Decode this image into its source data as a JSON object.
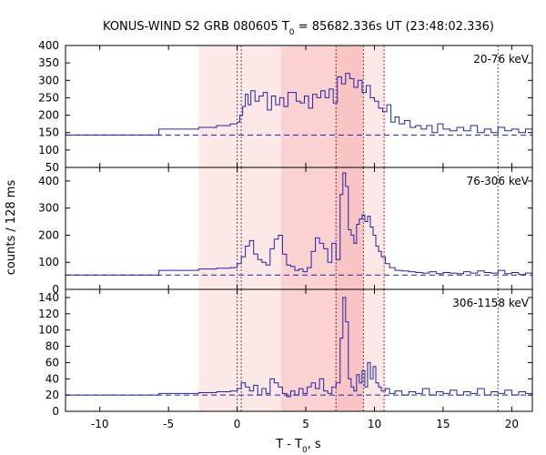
{
  "title_main": "KONUS-WIND S2 GRB 080605 T",
  "title_sub": "0",
  "title_rest": " = 85682.336s UT (23:48:02.336)",
  "chart_data": {
    "type": "step-line",
    "title": "KONUS-WIND S2 GRB 080605 T0 = 85682.336s UT (23:48:02.336)",
    "xlabel": "T - T0, s",
    "ylabel": "counts / 128 ms",
    "xlim": [
      -12.5,
      21.5
    ],
    "xticks": [
      -10,
      -5,
      0,
      5,
      10,
      15,
      20
    ],
    "xtick_labels": [
      "-10",
      "-5",
      "0",
      "5",
      "10",
      "15",
      "20"
    ],
    "shaded_regions": [
      {
        "x0": -2.8,
        "x1": 10.8,
        "color": "#fde8e8"
      },
      {
        "x0": 3.2,
        "x1": 7.2,
        "color": "#fbd2d2"
      },
      {
        "x0": 7.2,
        "x1": 9.2,
        "color": "#f9c4c4"
      }
    ],
    "vlines_grey": [
      0.0,
      0.3,
      7.2,
      9.2,
      19.0
    ],
    "vlines_red": [
      7.2,
      10.7
    ],
    "series_color": "#2222aa",
    "bg_color": "#cc3333",
    "panels": [
      {
        "label": "20-76 keV",
        "ylim": [
          50,
          400
        ],
        "yticks": [
          50,
          100,
          150,
          200,
          250,
          300,
          350,
          400
        ],
        "background": 143,
        "x": [
          -12.5,
          -5.7,
          -2.8,
          -1.5,
          -0.5,
          0.0,
          0.2,
          0.4,
          0.6,
          0.8,
          1.0,
          1.3,
          1.6,
          1.9,
          2.2,
          2.5,
          2.8,
          3.1,
          3.4,
          3.7,
          4.0,
          4.3,
          4.6,
          4.9,
          5.2,
          5.5,
          5.8,
          6.1,
          6.4,
          6.7,
          7.0,
          7.3,
          7.6,
          7.9,
          8.2,
          8.5,
          8.8,
          9.1,
          9.4,
          9.7,
          10.0,
          10.3,
          10.6,
          10.9,
          11.2,
          11.5,
          11.8,
          12.2,
          12.6,
          13.0,
          13.4,
          13.8,
          14.2,
          14.6,
          15.0,
          15.5,
          16.0,
          16.5,
          17.0,
          17.5,
          18.0,
          18.5,
          19.0,
          19.5,
          20.0,
          20.5,
          21.0
        ],
        "y": [
          143,
          160,
          165,
          170,
          175,
          180,
          200,
          225,
          260,
          230,
          270,
          240,
          255,
          265,
          215,
          255,
          230,
          250,
          225,
          265,
          265,
          240,
          235,
          255,
          220,
          260,
          250,
          270,
          250,
          275,
          235,
          310,
          290,
          320,
          305,
          280,
          300,
          265,
          285,
          250,
          240,
          220,
          210,
          230,
          180,
          195,
          175,
          185,
          165,
          170,
          160,
          170,
          150,
          175,
          160,
          155,
          165,
          155,
          170,
          150,
          160,
          150,
          165,
          155,
          160,
          150,
          160
        ]
      },
      {
        "label": "76-306 keV",
        "ylim": [
          0,
          450
        ],
        "yticks": [
          0,
          100,
          200,
          300,
          400
        ],
        "background": 53,
        "x": [
          -12.5,
          -5.7,
          -2.8,
          -1.5,
          -0.5,
          0.0,
          0.3,
          0.6,
          0.9,
          1.2,
          1.5,
          1.8,
          2.1,
          2.4,
          2.7,
          3.0,
          3.3,
          3.6,
          3.9,
          4.2,
          4.5,
          4.8,
          5.1,
          5.4,
          5.7,
          6.0,
          6.3,
          6.6,
          6.9,
          7.2,
          7.5,
          7.7,
          7.9,
          8.1,
          8.3,
          8.5,
          8.7,
          8.9,
          9.1,
          9.3,
          9.5,
          9.7,
          9.9,
          10.1,
          10.3,
          10.5,
          10.8,
          11.1,
          11.5,
          12.0,
          12.5,
          13.0,
          13.5,
          14.0,
          14.5,
          15.0,
          15.5,
          16.0,
          16.5,
          17.0,
          17.5,
          18.0,
          18.5,
          19.0,
          19.5,
          20.0,
          20.5,
          21.0
        ],
        "y": [
          53,
          70,
          75,
          78,
          80,
          95,
          120,
          160,
          180,
          130,
          110,
          100,
          90,
          150,
          185,
          200,
          130,
          90,
          85,
          70,
          75,
          65,
          80,
          140,
          190,
          170,
          150,
          100,
          170,
          110,
          350,
          430,
          380,
          220,
          200,
          170,
          240,
          260,
          275,
          250,
          270,
          230,
          200,
          160,
          140,
          120,
          95,
          80,
          70,
          68,
          65,
          62,
          60,
          65,
          58,
          62,
          60,
          58,
          65,
          60,
          68,
          62,
          60,
          70,
          58,
          62,
          55,
          60
        ]
      },
      {
        "label": "306-1158 keV",
        "ylim": [
          0,
          150
        ],
        "yticks": [
          0,
          20,
          40,
          60,
          80,
          100,
          120,
          140
        ],
        "background": 20,
        "x": [
          -12.5,
          -5.7,
          -2.8,
          -1.5,
          -0.5,
          0.0,
          0.3,
          0.6,
          0.9,
          1.2,
          1.5,
          1.8,
          2.1,
          2.4,
          2.7,
          3.0,
          3.3,
          3.6,
          3.9,
          4.2,
          4.5,
          4.8,
          5.1,
          5.4,
          5.7,
          6.0,
          6.3,
          6.6,
          6.9,
          7.2,
          7.5,
          7.7,
          7.9,
          8.1,
          8.3,
          8.5,
          8.7,
          8.9,
          9.1,
          9.3,
          9.5,
          9.7,
          9.9,
          10.1,
          10.3,
          10.5,
          10.8,
          11.1,
          11.5,
          12.0,
          12.5,
          13.0,
          13.5,
          14.0,
          14.5,
          15.0,
          15.5,
          16.0,
          16.5,
          17.0,
          17.5,
          18.0,
          18.5,
          19.0,
          19.5,
          20.0,
          20.5,
          21.0
        ],
        "y": [
          20,
          22,
          23,
          24,
          25,
          28,
          35,
          30,
          25,
          32,
          20,
          28,
          22,
          40,
          35,
          30,
          22,
          18,
          25,
          20,
          28,
          22,
          30,
          35,
          28,
          40,
          25,
          22,
          30,
          35,
          90,
          140,
          110,
          40,
          30,
          25,
          45,
          35,
          50,
          30,
          60,
          40,
          55,
          35,
          30,
          25,
          28,
          22,
          25,
          20,
          24,
          22,
          28,
          20,
          24,
          22,
          26,
          20,
          24,
          22,
          28,
          20,
          24,
          22,
          26,
          20,
          24,
          22
        ]
      }
    ]
  }
}
